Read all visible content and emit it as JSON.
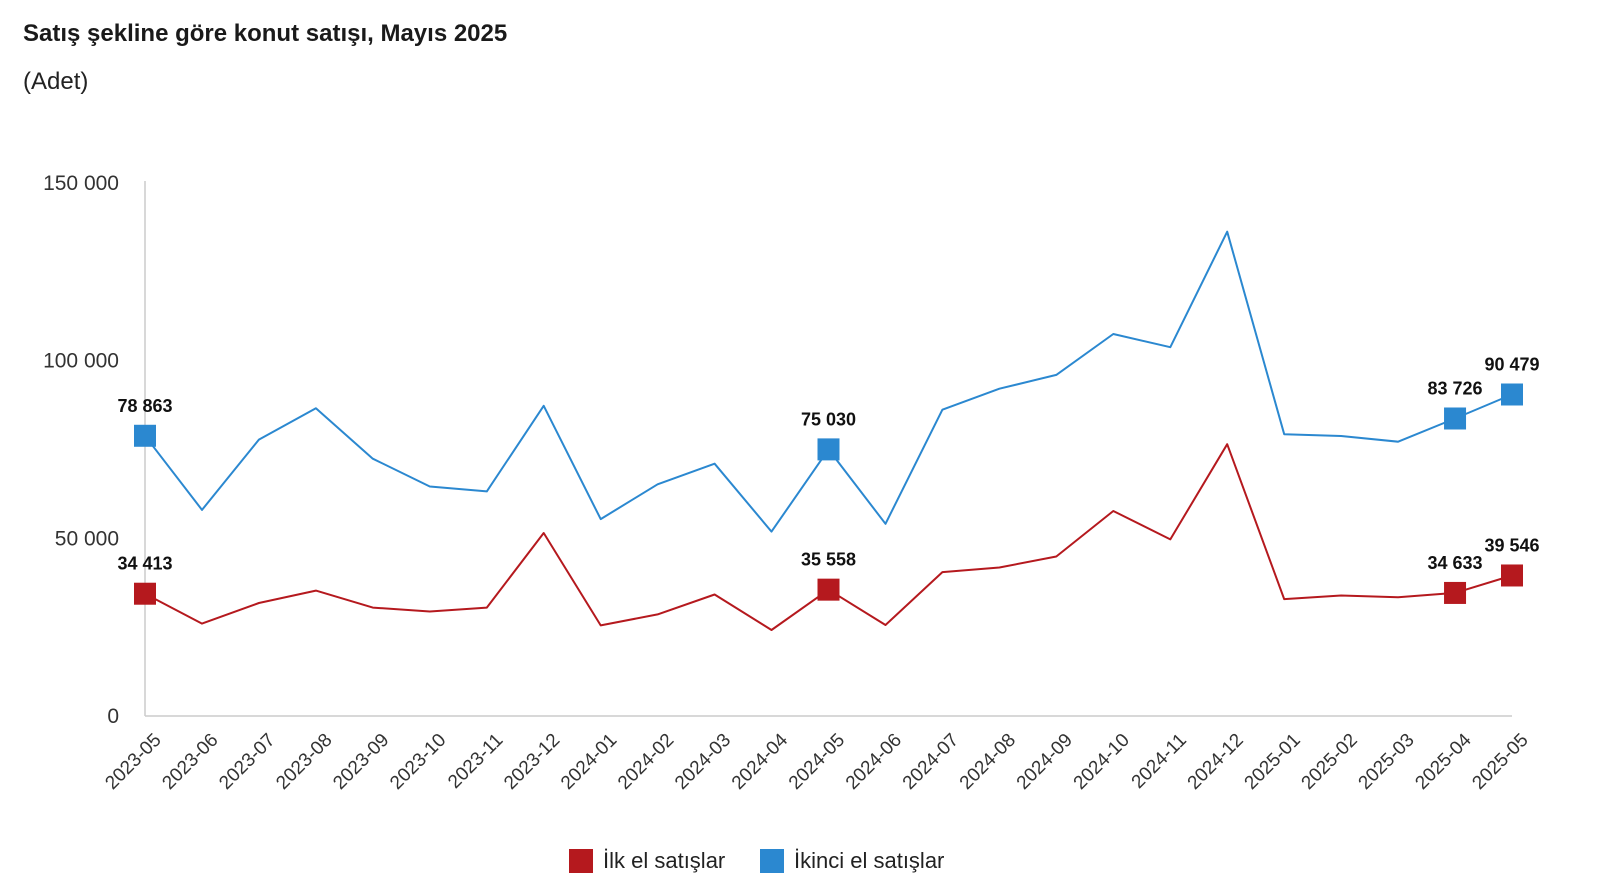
{
  "title": "Satış şekline göre konut satışı, Mayıs 2025",
  "subtitle": "(Adet)",
  "colors": {
    "first": "#b5191e",
    "second": "#2b88d0",
    "axis": "#cccccc"
  },
  "chart_data": {
    "type": "line",
    "title": "Satış şekline göre konut satışı, Mayıs 2025",
    "subtitle": "(Adet)",
    "xlabel": "",
    "ylabel": "",
    "ylim": [
      0,
      150000
    ],
    "yticks": [
      0,
      50000,
      100000,
      150000
    ],
    "ytick_labels": [
      "0",
      "50 000",
      "100 000",
      "150 000"
    ],
    "grid": false,
    "legend_position": "bottom",
    "categories": [
      "2023-05",
      "2023-06",
      "2023-07",
      "2023-08",
      "2023-09",
      "2023-10",
      "2023-11",
      "2023-12",
      "2024-01",
      "2024-02",
      "2024-03",
      "2024-04",
      "2024-05",
      "2024-06",
      "2024-07",
      "2024-08",
      "2024-09",
      "2024-10",
      "2024-11",
      "2024-12",
      "2025-01",
      "2025-02",
      "2025-03",
      "2025-04",
      "2025-05"
    ],
    "series": [
      {
        "name": "İlk el satışlar",
        "color": "#b5191e",
        "values": [
          34413,
          26000,
          31800,
          35300,
          30500,
          29400,
          30500,
          51500,
          25500,
          28600,
          34200,
          24200,
          35558,
          25600,
          40500,
          41800,
          44900,
          57700,
          49700,
          76500,
          32900,
          33900,
          33400,
          34633,
          39546
        ]
      },
      {
        "name": "İkinci el satışlar",
        "color": "#2b88d0",
        "values": [
          78863,
          58000,
          77800,
          86600,
          72400,
          64600,
          63200,
          87300,
          55400,
          65200,
          71000,
          51900,
          75030,
          54100,
          86200,
          92100,
          96000,
          107500,
          103800,
          136300,
          79300,
          78800,
          77200,
          83726,
          90479
        ]
      }
    ],
    "annotations": [
      {
        "series": 0,
        "index": 0,
        "label": "34 413"
      },
      {
        "series": 0,
        "index": 12,
        "label": "35 558"
      },
      {
        "series": 0,
        "index": 23,
        "label": "34 633"
      },
      {
        "series": 0,
        "index": 24,
        "label": "39 546"
      },
      {
        "series": 1,
        "index": 0,
        "label": "78 863"
      },
      {
        "series": 1,
        "index": 12,
        "label": "75 030"
      },
      {
        "series": 1,
        "index": 23,
        "label": "83 726"
      },
      {
        "series": 1,
        "index": 24,
        "label": "90 479"
      }
    ]
  },
  "legend": {
    "first_label": "İlk el satışlar",
    "second_label": "İkinci el satışlar"
  }
}
